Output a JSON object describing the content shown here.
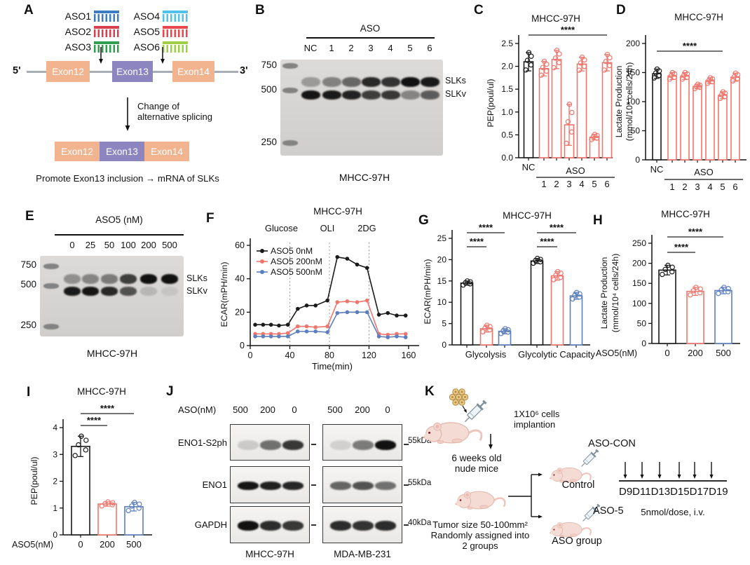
{
  "colors": {
    "nc": "#1a1a1a",
    "red": "#f0766d",
    "blue": "#5d7fbe",
    "exon_salmon": "#f2b48f",
    "exon_purple": "#8d85c0"
  },
  "panel_labels": {
    "A": "A",
    "B": "B",
    "C": "C",
    "D": "D",
    "E": "E",
    "F": "F",
    "G": "G",
    "H": "H",
    "I": "I",
    "J": "J",
    "K": "K"
  },
  "panelA": {
    "asos": [
      {
        "name": "ASO1",
        "color": "#3d7cc0"
      },
      {
        "name": "ASO2",
        "color": "#d8404f"
      },
      {
        "name": "ASO3",
        "color": "#2f9e4e"
      },
      {
        "name": "ASO4",
        "color": "#51c1ea"
      },
      {
        "name": "ASO5",
        "color": "#e8474d"
      },
      {
        "name": "ASO6",
        "color": "#9ecf45"
      }
    ],
    "five_prime": "5'",
    "three_prime": "3'",
    "exons": [
      "Exon12",
      "Exon13",
      "Exon14"
    ],
    "note_line1": "Change of",
    "note_line2": "alternative splicing",
    "bottom_text": "Promote Exon13 inclusion → mRNA of SLKs"
  },
  "panelB": {
    "header": "ASO",
    "lanes": [
      "NC",
      "1",
      "2",
      "3",
      "4",
      "5",
      "6"
    ],
    "markers": [
      "750",
      "500",
      "250"
    ],
    "band_labels": [
      "SLKs",
      "SLKv"
    ],
    "caption": "MHCC-97H",
    "upper_band": [
      0.3,
      0.42,
      0.55,
      0.85,
      0.8,
      0.97,
      0.93
    ],
    "lower_band": [
      0.95,
      0.92,
      0.88,
      0.75,
      0.78,
      0.4,
      0.6
    ]
  },
  "panelE": {
    "header": "ASO5 (nM)",
    "lanes": [
      "0",
      "25",
      "50",
      "100",
      "200",
      "500"
    ],
    "markers": [
      "750",
      "500",
      "250"
    ],
    "band_labels": [
      "SLKs",
      "SLKv"
    ],
    "caption": "MHCC-97H",
    "upper_band": [
      0.35,
      0.4,
      0.45,
      0.75,
      0.97,
      0.97
    ],
    "lower_band": [
      0.92,
      0.95,
      0.85,
      0.65,
      0.15,
      0.08
    ]
  },
  "chart_data": [
    {
      "id": "C",
      "type": "bar",
      "title": "MHCC-97H",
      "ylabel": "PEP(poul/ul)",
      "ylim": [
        0,
        2.5
      ],
      "yticks": [
        "0.0",
        "0.5",
        "1.0",
        "1.5",
        "2.0",
        "2.5"
      ],
      "categories": [
        "NC",
        "1",
        "2",
        "3",
        "4",
        "5",
        "6"
      ],
      "group_label": "ASO",
      "values": [
        2.1,
        1.95,
        2.15,
        0.72,
        2.05,
        0.45,
        2.08
      ],
      "errors": [
        0.2,
        0.16,
        0.2,
        0.45,
        0.15,
        0.06,
        0.18
      ],
      "colors": [
        "nc",
        "red",
        "red",
        "red",
        "red",
        "red",
        "red"
      ],
      "sig": [
        {
          "label": "****",
          "from": 0,
          "to": 6,
          "level": 0
        }
      ]
    },
    {
      "id": "D",
      "type": "bar",
      "title": "MHCC-97H",
      "ylabel": "Lactate Production",
      "ylabel2": "(mmol/10⁴ cells/24h)",
      "ylim": [
        0,
        200
      ],
      "yticks": [
        "0",
        "50",
        "100",
        "150",
        "200"
      ],
      "categories": [
        "NC",
        "1",
        "2",
        "3",
        "4",
        "5",
        "6"
      ],
      "group_label": "ASO",
      "values": [
        148,
        144,
        144,
        126,
        136,
        111,
        142
      ],
      "errors": [
        8,
        6,
        6,
        4,
        5,
        6,
        7
      ],
      "colors": [
        "nc",
        "red",
        "red",
        "red",
        "red",
        "red",
        "red"
      ],
      "sig": [
        {
          "label": "****",
          "from": 0,
          "to": 5,
          "level": 0
        }
      ]
    },
    {
      "id": "F",
      "type": "line",
      "title": "MHCC-97H",
      "ylabel": "ECAR(mPH/min)",
      "xlabel": "Time(min)",
      "ylim": [
        0,
        60
      ],
      "yticks": [
        0,
        20,
        40,
        60
      ],
      "xlim": [
        0,
        165
      ],
      "xticks": [
        0,
        40,
        80,
        120,
        160
      ],
      "events": [
        {
          "x": 40,
          "label": "Glucose"
        },
        {
          "x": 80,
          "label": "OLI"
        },
        {
          "x": 120,
          "label": "2DG"
        }
      ],
      "x": [
        5,
        13,
        21,
        29,
        38,
        48,
        57,
        66,
        78,
        88,
        98,
        108,
        118,
        130,
        139,
        148,
        157
      ],
      "series": [
        {
          "name": "ASO5 0nM",
          "color": "nc",
          "values": [
            12.5,
            12.5,
            12.5,
            12,
            12.5,
            22,
            24,
            24,
            27,
            53,
            52,
            48.5,
            46.5,
            18.5,
            19.5,
            18,
            18
          ]
        },
        {
          "name": "ASO5 200nM",
          "color": "red",
          "values": [
            7,
            7,
            7,
            7,
            7.5,
            11.5,
            11.5,
            11,
            11.5,
            26,
            26.5,
            26,
            27,
            7,
            6.5,
            7,
            7
          ]
        },
        {
          "name": "ASO5 500nM",
          "color": "blue",
          "values": [
            5.5,
            5.5,
            5.5,
            5.5,
            5.5,
            8.5,
            8.5,
            8.5,
            8,
            19.5,
            20,
            20,
            20,
            5.5,
            5,
            5.5,
            5
          ]
        }
      ]
    },
    {
      "id": "G",
      "type": "bar",
      "title": "MHCC-97H",
      "ylabel": "ECAR(mPH/min)",
      "ylim": [
        0,
        25
      ],
      "yticks": [
        "0",
        "5",
        "10",
        "15",
        "20",
        "25"
      ],
      "group_names": [
        "Glycolysis",
        "Glycolytic Capacity"
      ],
      "values": [
        14.5,
        3.8,
        3.2,
        19.7,
        16.2,
        11.5
      ],
      "errors": [
        0.5,
        0.8,
        0.6,
        0.6,
        1.0,
        0.8
      ],
      "colors": [
        "nc",
        "red",
        "blue",
        "nc",
        "red",
        "blue"
      ],
      "sig": [
        {
          "label": "****",
          "from": 0,
          "to": 1,
          "level": 0
        },
        {
          "label": "****",
          "from": 0,
          "to": 2,
          "level": 1
        },
        {
          "label": "****",
          "from": 3,
          "to": 4,
          "level": 0
        },
        {
          "label": "****",
          "from": 3,
          "to": 5,
          "level": 1
        }
      ]
    },
    {
      "id": "H",
      "type": "bar",
      "title": "MHCC-97H",
      "ylabel": "Lactate Production",
      "ylabel2": "(mmol/10⁴ cells/24h)",
      "ylim": [
        0,
        250
      ],
      "yticks": [
        "0",
        "50",
        "100",
        "150",
        "200",
        "250"
      ],
      "categories": [
        "0",
        "200",
        "500"
      ],
      "axis_prefix": "ASO5(nM)",
      "values": [
        183,
        130,
        132
      ],
      "errors": [
        12,
        10,
        8
      ],
      "colors": [
        "nc",
        "red",
        "blue"
      ],
      "sig": [
        {
          "label": "****",
          "from": 0,
          "to": 1,
          "level": 0
        },
        {
          "label": "****",
          "from": 0,
          "to": 2,
          "level": 1
        }
      ]
    },
    {
      "id": "I",
      "type": "bar",
      "title": "MHCC-97H",
      "ylabel": "PEP(poul/ul)",
      "ylim": [
        0,
        4
      ],
      "yticks": [
        "0",
        "1",
        "2",
        "3",
        "4"
      ],
      "categories": [
        "0",
        "200",
        "500"
      ],
      "axis_prefix": "ASO5(nM)",
      "values": [
        3.3,
        1.15,
        1.05
      ],
      "errors": [
        0.38,
        0.08,
        0.16
      ],
      "colors": [
        "nc",
        "red",
        "blue"
      ],
      "sig": [
        {
          "label": "****",
          "from": 0,
          "to": 1,
          "level": 0
        },
        {
          "label": "****",
          "from": 0,
          "to": 2,
          "level": 1
        }
      ]
    }
  ],
  "panelJ": {
    "header": "ASO(nM)",
    "lanes": [
      "500",
      "200",
      "0"
    ],
    "rows": [
      "ENO1-S2ph",
      "ENO1",
      "GAPDH"
    ],
    "sizes": [
      "55kDa",
      "55kDa",
      "40kDa"
    ],
    "blots": [
      {
        "caption": "MHCC-97H",
        "bands": [
          [
            0.15,
            0.55,
            0.8
          ],
          [
            0.95,
            0.9,
            0.88
          ],
          [
            0.97,
            0.85,
            0.8
          ]
        ]
      },
      {
        "caption": "MDA-MB-231",
        "bands": [
          [
            0.12,
            0.5,
            0.97
          ],
          [
            0.6,
            0.68,
            0.55
          ],
          [
            0.85,
            0.82,
            0.85
          ]
        ]
      }
    ]
  },
  "panelK": {
    "implant_line1": "1X10⁶ cells",
    "implant_line2": "implantion",
    "mice_line1": "6 weeks old",
    "mice_line2": "nude mice",
    "tumor_line1": "Tumor size 50-100mm²",
    "tumor_line2": "Randomly assigned into",
    "tumor_line3": "2 groups",
    "aso_con": "ASO-CON",
    "control": "Control",
    "aso5": "ASO-5",
    "aso_group": "ASO group",
    "timeline": "D9D11D13D15D17D19",
    "dose": "5nmol/dose, i.v."
  }
}
